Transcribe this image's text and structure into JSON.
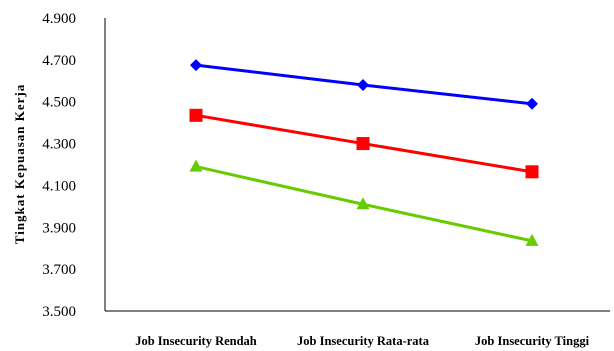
{
  "chart_data": {
    "type": "line",
    "title": "",
    "xlabel": "",
    "ylabel": "Tingkat Kepuasan Kerja",
    "categories": [
      "Job Insecurity Rendah",
      "Job Insecurity Rata-rata",
      "Job Insecurity Tinggi"
    ],
    "ylim": [
      3.5,
      4.9
    ],
    "yticks": [
      3.5,
      3.7,
      3.9,
      4.1,
      4.3,
      4.5,
      4.7,
      4.9
    ],
    "ytick_labels": [
      "3.500",
      "3.700",
      "3.900",
      "4.100",
      "4.300",
      "4.500",
      "4.700",
      "4.900"
    ],
    "grid": false,
    "legend": "none",
    "series": [
      {
        "values": [
          4.675,
          4.58,
          4.49
        ],
        "color": "#0000ff",
        "marker": "diamond"
      },
      {
        "values": [
          4.435,
          4.3,
          4.165
        ],
        "color": "#ff0000",
        "marker": "square"
      },
      {
        "values": [
          4.19,
          4.01,
          3.835
        ],
        "color": "#66cc00",
        "marker": "triangle"
      }
    ]
  }
}
